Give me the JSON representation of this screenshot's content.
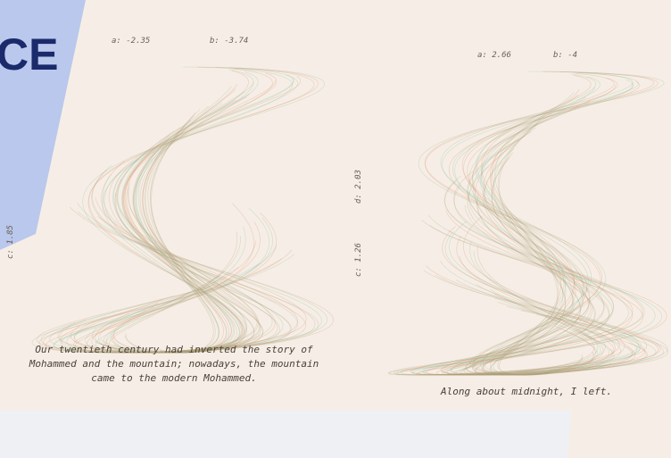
{
  "header": {
    "title": "CE"
  },
  "panels": [
    {
      "a_label": "a: -2.35",
      "b_label": "b: -3.74",
      "c_label": "c: 1.85",
      "caption": [
        "Our twentieth century had inverted the story of",
        "Mohammed and the mountain; nowadays, the mountain",
        "came to the modern Mohammed."
      ]
    },
    {
      "a_label": "a: 2.66",
      "b_label": "b: -4",
      "c_label": "c: 1.26",
      "d_label": "d: 2.03",
      "caption": [
        "Along about midnight, I left."
      ]
    }
  ]
}
